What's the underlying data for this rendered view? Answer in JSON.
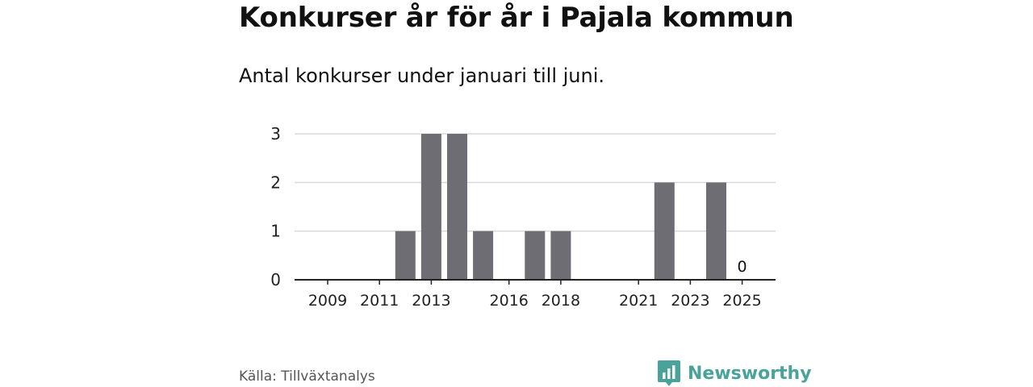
{
  "title": "Konkurser år för år i Pajala kommun",
  "subtitle": "Antal konkurser under januari till juni.",
  "source": "Källa: Tillväxtanalys",
  "brand": {
    "name": "Newsworthy",
    "icon": "newsworthy-logo-icon",
    "color": "#4aa39a"
  },
  "chart_data": {
    "type": "bar",
    "categories": [
      "2009",
      "2010",
      "2011",
      "2012",
      "2013",
      "2014",
      "2015",
      "2016",
      "2017",
      "2018",
      "2019",
      "2020",
      "2021",
      "2022",
      "2023",
      "2024",
      "2025"
    ],
    "values": [
      0,
      0,
      0,
      1,
      3,
      3,
      1,
      0,
      1,
      1,
      0,
      0,
      0,
      2,
      0,
      2,
      0
    ],
    "x_tick_labels": [
      "2009",
      "2011",
      "2013",
      "2016",
      "2018",
      "2021",
      "2023",
      "2025"
    ],
    "y_ticks": [
      0,
      1,
      2,
      3
    ],
    "ylim": [
      0,
      3
    ],
    "bar_color": "#6e6d73",
    "grid": true,
    "annotations": [
      {
        "category": "2025",
        "text": "0"
      }
    ]
  }
}
